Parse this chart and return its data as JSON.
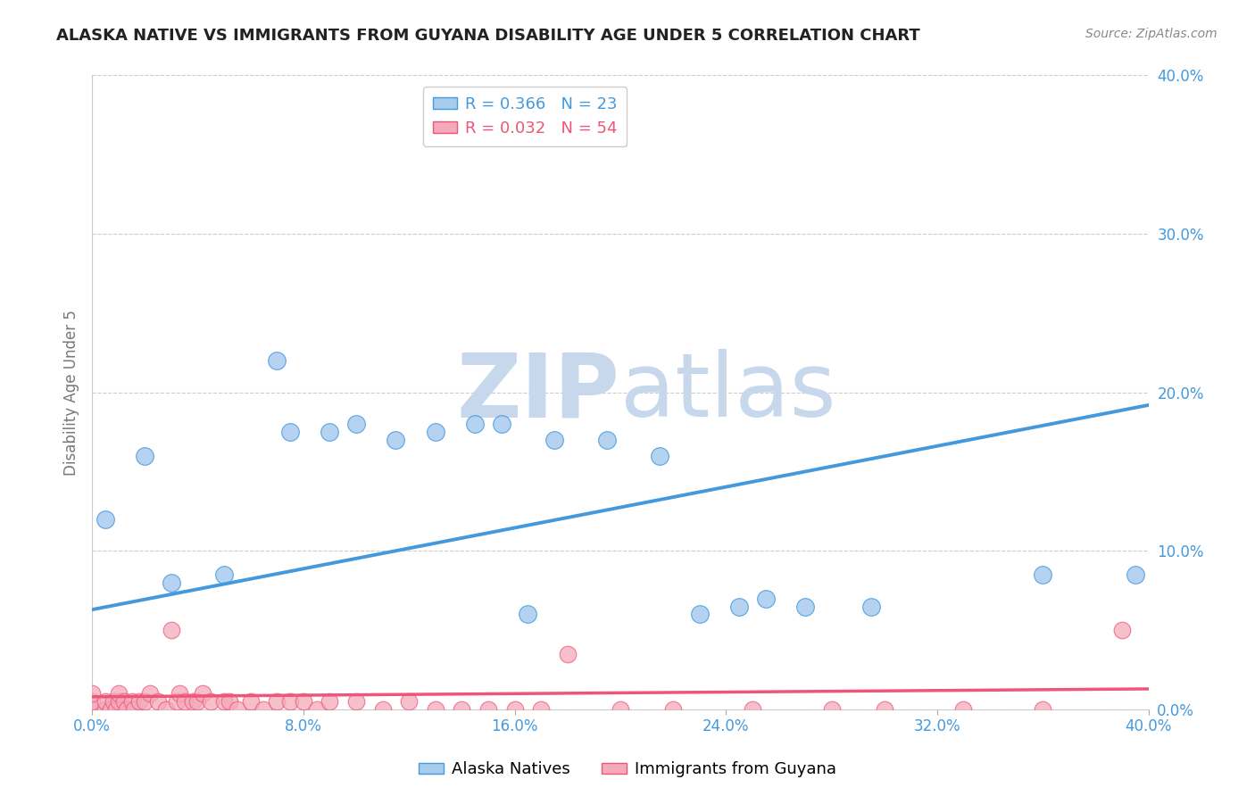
{
  "title": "ALASKA NATIVE VS IMMIGRANTS FROM GUYANA DISABILITY AGE UNDER 5 CORRELATION CHART",
  "source": "Source: ZipAtlas.com",
  "ylabel": "Disability Age Under 5",
  "xlabel": "",
  "xlim": [
    0.0,
    0.4
  ],
  "ylim": [
    0.0,
    0.4
  ],
  "xticks": [
    0.0,
    0.08,
    0.16,
    0.24,
    0.32,
    0.4
  ],
  "yticks": [
    0.0,
    0.1,
    0.2,
    0.3,
    0.4
  ],
  "xtick_labels": [
    "0.0%",
    "8.0%",
    "16.0%",
    "24.0%",
    "32.0%",
    "40.0%"
  ],
  "ytick_labels": [
    "0.0%",
    "10.0%",
    "20.0%",
    "30.0%",
    "40.0%"
  ],
  "alaska_R": "0.366",
  "alaska_N": "23",
  "guyana_R": "0.032",
  "guyana_N": "54",
  "alaska_color": "#A8CCEE",
  "guyana_color": "#F4AABB",
  "alaska_line_color": "#4499DD",
  "guyana_line_color": "#EE5577",
  "watermark_zip": "ZIP",
  "watermark_atlas": "atlas",
  "watermark_color": "#C8D8EC",
  "background_color": "#FFFFFF",
  "grid_color": "#CCCCCC",
  "alaska_x": [
    0.005,
    0.02,
    0.03,
    0.05,
    0.07,
    0.075,
    0.09,
    0.1,
    0.115,
    0.13,
    0.145,
    0.155,
    0.165,
    0.175,
    0.195,
    0.215,
    0.23,
    0.245,
    0.255,
    0.27,
    0.295,
    0.36,
    0.395
  ],
  "alaska_y": [
    0.12,
    0.16,
    0.08,
    0.085,
    0.22,
    0.175,
    0.175,
    0.18,
    0.17,
    0.175,
    0.18,
    0.18,
    0.06,
    0.17,
    0.17,
    0.16,
    0.06,
    0.065,
    0.07,
    0.065,
    0.065,
    0.085,
    0.085
  ],
  "guyana_x": [
    0.0,
    0.0,
    0.0,
    0.005,
    0.005,
    0.007,
    0.008,
    0.009,
    0.01,
    0.01,
    0.012,
    0.013,
    0.015,
    0.016,
    0.018,
    0.02,
    0.022,
    0.025,
    0.028,
    0.03,
    0.032,
    0.033,
    0.035,
    0.038,
    0.04,
    0.042,
    0.045,
    0.05,
    0.052,
    0.055,
    0.06,
    0.065,
    0.07,
    0.075,
    0.08,
    0.085,
    0.09,
    0.1,
    0.11,
    0.12,
    0.13,
    0.14,
    0.15,
    0.16,
    0.17,
    0.18,
    0.2,
    0.22,
    0.25,
    0.28,
    0.3,
    0.33,
    0.36,
    0.39
  ],
  "guyana_y": [
    0.0,
    0.005,
    0.01,
    0.0,
    0.005,
    0.0,
    0.005,
    0.0,
    0.005,
    0.01,
    0.005,
    0.0,
    0.005,
    0.0,
    0.005,
    0.005,
    0.01,
    0.005,
    0.0,
    0.05,
    0.005,
    0.01,
    0.005,
    0.005,
    0.005,
    0.01,
    0.005,
    0.005,
    0.005,
    0.0,
    0.005,
    0.0,
    0.005,
    0.005,
    0.005,
    0.0,
    0.005,
    0.005,
    0.0,
    0.005,
    0.0,
    0.0,
    0.0,
    0.0,
    0.0,
    0.035,
    0.0,
    0.0,
    0.0,
    0.0,
    0.0,
    0.0,
    0.0,
    0.05
  ],
  "blue_line_x": [
    0.0,
    0.4
  ],
  "blue_line_y": [
    0.063,
    0.192
  ],
  "pink_line_x": [
    0.0,
    0.4
  ],
  "pink_line_y": [
    0.008,
    0.013
  ]
}
